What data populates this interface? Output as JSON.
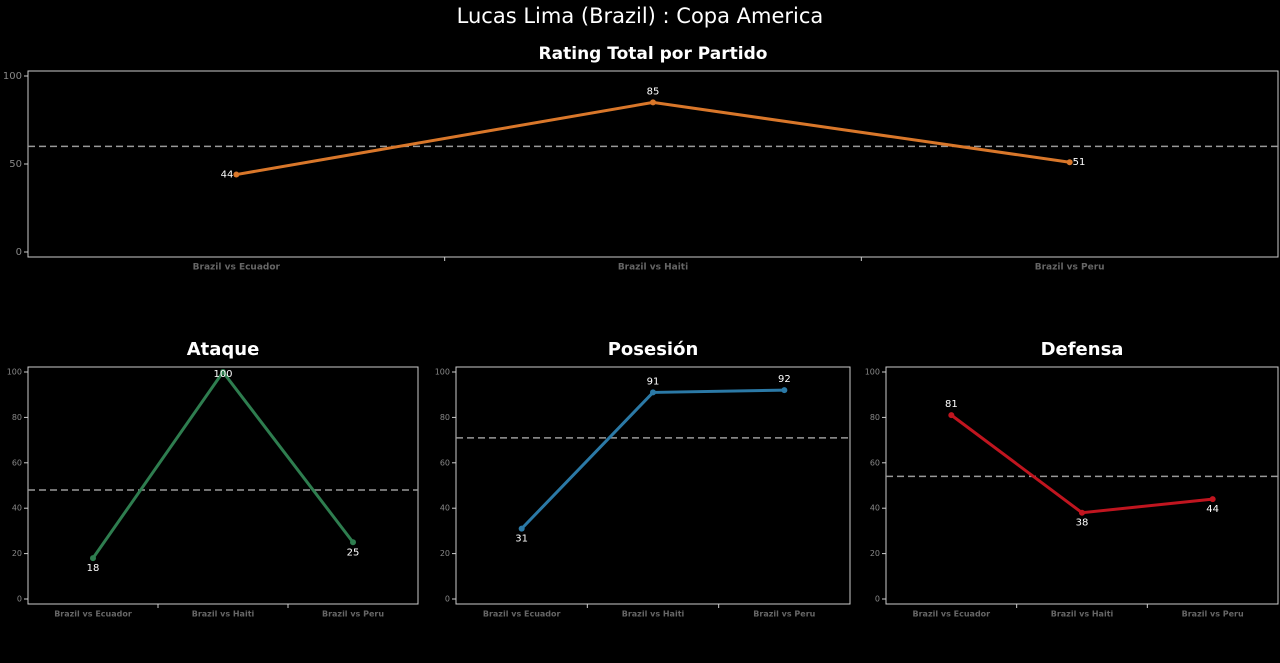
{
  "title": "Lucas Lima (Brazil) :  Copa  America",
  "chart_data": [
    {
      "type": "line",
      "title": "Rating Total por Partido",
      "categories": [
        "Brazil vs Ecuador",
        "Brazil vs Haiti",
        "Brazil vs Peru"
      ],
      "values": [
        44,
        85,
        51
      ],
      "color": "#d9772a",
      "ylim": [
        0,
        100
      ],
      "yticks": [
        0,
        50,
        100
      ],
      "reference_line": 60
    },
    {
      "type": "line",
      "title": "Ataque",
      "categories": [
        "Brazil vs Ecuador",
        "Brazil vs Haiti",
        "Brazil vs Peru"
      ],
      "values": [
        18,
        100,
        25
      ],
      "color": "#2e7d4f",
      "ylim": [
        0,
        100
      ],
      "yticks": [
        0,
        20,
        40,
        60,
        80,
        100
      ],
      "reference_line": 48
    },
    {
      "type": "line",
      "title": "Posesión",
      "categories": [
        "Brazil vs Ecuador",
        "Brazil vs Haiti",
        "Brazil vs Peru"
      ],
      "values": [
        31,
        91,
        92
      ],
      "color": "#2b79a6",
      "ylim": [
        0,
        100
      ],
      "yticks": [
        0,
        20,
        40,
        60,
        80,
        100
      ],
      "reference_line": 71
    },
    {
      "type": "line",
      "title": "Defensa",
      "categories": [
        "Brazil vs Ecuador",
        "Brazil vs Haiti",
        "Brazil vs Peru"
      ],
      "values": [
        81,
        38,
        44
      ],
      "color": "#c0151f",
      "ylim": [
        0,
        100
      ],
      "yticks": [
        0,
        20,
        40,
        60,
        80,
        100
      ],
      "reference_line": 54
    }
  ]
}
